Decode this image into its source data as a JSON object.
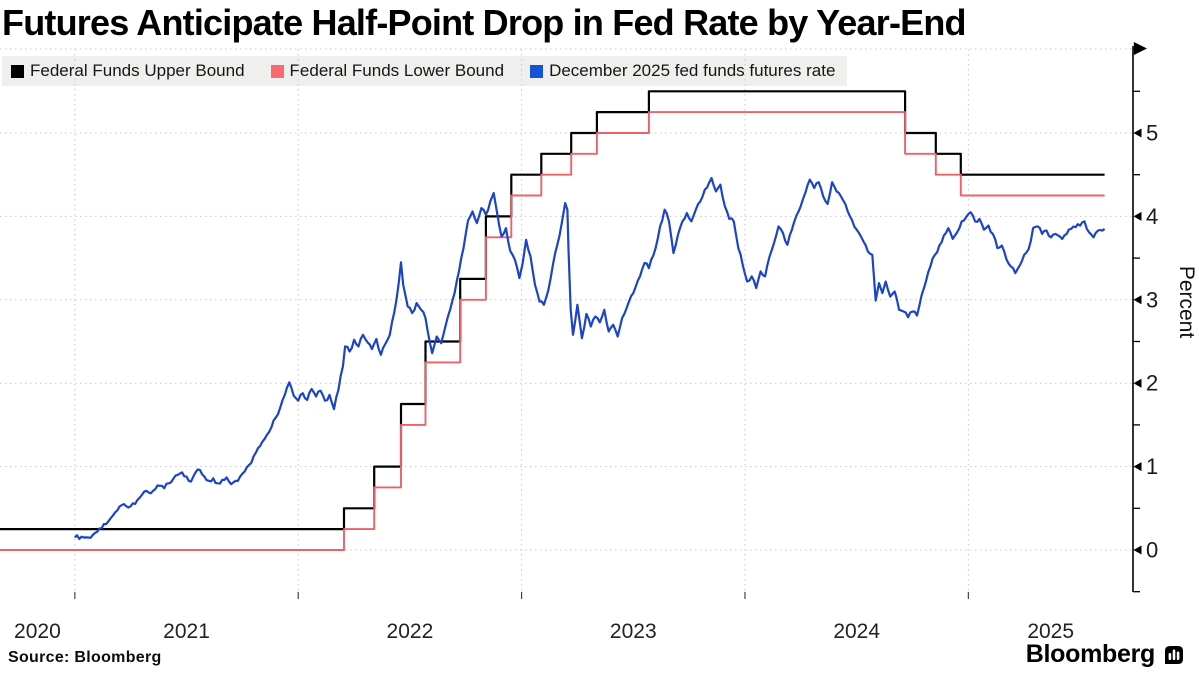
{
  "title": "Futures Anticipate Half-Point Drop in Fed Rate by Year-End",
  "source_note": "Source: Bloomberg",
  "brand": {
    "wordmark": "Bloomberg"
  },
  "legend": {
    "items": [
      {
        "label": "Federal Funds Upper Bound",
        "swatch_color": "#000000"
      },
      {
        "label": "Federal Funds Lower Bound",
        "swatch_color": "#fa696d"
      },
      {
        "label": "December 2025 fed funds futures rate",
        "swatch_color": "#1353d6"
      }
    ]
  },
  "chart_data": {
    "type": "line",
    "title": "Futures Anticipate Half-Point Drop in Fed Rate by Year-End",
    "xlabel": "",
    "ylabel": "Percent",
    "x_axis": {
      "domain": [
        2020.665,
        2025.737
      ],
      "gridline_years": [
        2021,
        2022,
        2023,
        2024,
        2025
      ],
      "labels": [
        "2020",
        "2021",
        "2022",
        "2023",
        "2024",
        "2025"
      ],
      "grid": true
    },
    "y_axis": {
      "range_shown": [
        -0.5,
        5.95
      ],
      "ticks": [
        0,
        1,
        2,
        3,
        4,
        5
      ],
      "minor_tick_step": 0.5,
      "side": "right",
      "grid": true
    },
    "colors": {
      "grid": "#c7c7c7",
      "axis": "#000000",
      "tick_text": "#1a1a1a"
    },
    "series": [
      {
        "name": "Federal Funds Upper Bound",
        "type": "step",
        "color": "#000000",
        "width": 2.2,
        "points": [
          [
            2020.665,
            0.25
          ],
          [
            2022.205,
            0.5
          ],
          [
            2022.34,
            1.0
          ],
          [
            2022.46,
            1.75
          ],
          [
            2022.57,
            2.5
          ],
          [
            2022.725,
            3.25
          ],
          [
            2022.84,
            4.0
          ],
          [
            2022.954,
            4.5
          ],
          [
            2023.088,
            4.75
          ],
          [
            2023.222,
            5.0
          ],
          [
            2023.337,
            5.25
          ],
          [
            2023.57,
            5.5
          ],
          [
            2024.717,
            5.0
          ],
          [
            2024.854,
            4.75
          ],
          [
            2024.966,
            4.5
          ],
          [
            2025.61,
            4.5
          ]
        ]
      },
      {
        "name": "Federal Funds Lower Bound",
        "type": "step",
        "color": "#ee6166",
        "width": 1.9,
        "points": [
          [
            2020.665,
            0.0
          ],
          [
            2022.205,
            0.25
          ],
          [
            2022.34,
            0.75
          ],
          [
            2022.46,
            1.5
          ],
          [
            2022.57,
            2.25
          ],
          [
            2022.725,
            3.0
          ],
          [
            2022.84,
            3.75
          ],
          [
            2022.954,
            4.25
          ],
          [
            2023.088,
            4.5
          ],
          [
            2023.222,
            4.75
          ],
          [
            2023.337,
            5.0
          ],
          [
            2023.57,
            5.25
          ],
          [
            2024.717,
            4.75
          ],
          [
            2024.854,
            4.5
          ],
          [
            2024.966,
            4.25
          ],
          [
            2025.61,
            4.25
          ]
        ]
      },
      {
        "name": "December 2025 fed funds futures rate",
        "type": "line",
        "color": "#1c44c9",
        "width": 2.2,
        "points": [
          [
            2021.0,
            0.15
          ],
          [
            2021.03,
            0.16
          ],
          [
            2021.06,
            0.15
          ],
          [
            2021.08,
            0.18
          ],
          [
            2021.1,
            0.22
          ],
          [
            2021.12,
            0.26
          ],
          [
            2021.14,
            0.31
          ],
          [
            2021.16,
            0.38
          ],
          [
            2021.18,
            0.45
          ],
          [
            2021.2,
            0.52
          ],
          [
            2021.22,
            0.55
          ],
          [
            2021.24,
            0.51
          ],
          [
            2021.26,
            0.56
          ],
          [
            2021.28,
            0.6
          ],
          [
            2021.3,
            0.66
          ],
          [
            2021.32,
            0.71
          ],
          [
            2021.34,
            0.68
          ],
          [
            2021.36,
            0.73
          ],
          [
            2021.38,
            0.77
          ],
          [
            2021.4,
            0.74
          ],
          [
            2021.42,
            0.8
          ],
          [
            2021.44,
            0.85
          ],
          [
            2021.46,
            0.9
          ],
          [
            2021.48,
            0.93
          ],
          [
            2021.5,
            0.88
          ],
          [
            2021.52,
            0.82
          ],
          [
            2021.54,
            0.93
          ],
          [
            2021.56,
            0.96
          ],
          [
            2021.58,
            0.88
          ],
          [
            2021.6,
            0.83
          ],
          [
            2021.62,
            0.86
          ],
          [
            2021.64,
            0.8
          ],
          [
            2021.66,
            0.84
          ],
          [
            2021.68,
            0.87
          ],
          [
            2021.7,
            0.79
          ],
          [
            2021.72,
            0.83
          ],
          [
            2021.74,
            0.88
          ],
          [
            2021.76,
            0.94
          ],
          [
            2021.78,
            1.02
          ],
          [
            2021.8,
            1.12
          ],
          [
            2021.82,
            1.22
          ],
          [
            2021.84,
            1.3
          ],
          [
            2021.86,
            1.38
          ],
          [
            2021.88,
            1.47
          ],
          [
            2021.9,
            1.59
          ],
          [
            2021.92,
            1.71
          ],
          [
            2021.94,
            1.86
          ],
          [
            2021.96,
            2.01
          ],
          [
            2021.97,
            1.94
          ],
          [
            2021.98,
            1.85
          ],
          [
            2022.0,
            1.79
          ],
          [
            2022.02,
            1.88
          ],
          [
            2022.04,
            1.8
          ],
          [
            2022.06,
            1.93
          ],
          [
            2022.08,
            1.84
          ],
          [
            2022.1,
            1.91
          ],
          [
            2022.12,
            1.79
          ],
          [
            2022.14,
            1.86
          ],
          [
            2022.16,
            1.69
          ],
          [
            2022.18,
            1.92
          ],
          [
            2022.2,
            2.2
          ],
          [
            2022.21,
            2.44
          ],
          [
            2022.23,
            2.38
          ],
          [
            2022.25,
            2.52
          ],
          [
            2022.27,
            2.44
          ],
          [
            2022.29,
            2.58
          ],
          [
            2022.31,
            2.49
          ],
          [
            2022.33,
            2.41
          ],
          [
            2022.35,
            2.53
          ],
          [
            2022.37,
            2.34
          ],
          [
            2022.39,
            2.47
          ],
          [
            2022.41,
            2.58
          ],
          [
            2022.43,
            2.85
          ],
          [
            2022.45,
            3.2
          ],
          [
            2022.46,
            3.45
          ],
          [
            2022.47,
            3.18
          ],
          [
            2022.49,
            2.92
          ],
          [
            2022.51,
            2.84
          ],
          [
            2022.53,
            2.96
          ],
          [
            2022.55,
            2.88
          ],
          [
            2022.57,
            2.78
          ],
          [
            2022.59,
            2.48
          ],
          [
            2022.6,
            2.36
          ],
          [
            2022.62,
            2.56
          ],
          [
            2022.64,
            2.48
          ],
          [
            2022.66,
            2.69
          ],
          [
            2022.68,
            2.88
          ],
          [
            2022.7,
            3.08
          ],
          [
            2022.72,
            3.35
          ],
          [
            2022.74,
            3.62
          ],
          [
            2022.76,
            3.95
          ],
          [
            2022.78,
            4.06
          ],
          [
            2022.8,
            3.92
          ],
          [
            2022.82,
            4.1
          ],
          [
            2022.84,
            4.02
          ],
          [
            2022.86,
            4.18
          ],
          [
            2022.875,
            4.28
          ],
          [
            2022.89,
            4.05
          ],
          [
            2022.91,
            3.76
          ],
          [
            2022.93,
            3.86
          ],
          [
            2022.95,
            3.58
          ],
          [
            2022.97,
            3.48
          ],
          [
            2022.99,
            3.26
          ],
          [
            2023.005,
            3.44
          ],
          [
            2023.02,
            3.72
          ],
          [
            2023.04,
            3.52
          ],
          [
            2023.06,
            3.18
          ],
          [
            2023.08,
            2.98
          ],
          [
            2023.1,
            2.94
          ],
          [
            2023.12,
            3.12
          ],
          [
            2023.14,
            3.42
          ],
          [
            2023.16,
            3.66
          ],
          [
            2023.18,
            3.92
          ],
          [
            2023.195,
            4.16
          ],
          [
            2023.205,
            4.08
          ],
          [
            2023.21,
            3.6
          ],
          [
            2023.22,
            2.88
          ],
          [
            2023.23,
            2.58
          ],
          [
            2023.25,
            2.94
          ],
          [
            2023.27,
            2.54
          ],
          [
            2023.29,
            2.83
          ],
          [
            2023.31,
            2.68
          ],
          [
            2023.33,
            2.8
          ],
          [
            2023.35,
            2.73
          ],
          [
            2023.37,
            2.88
          ],
          [
            2023.39,
            2.62
          ],
          [
            2023.41,
            2.7
          ],
          [
            2023.43,
            2.56
          ],
          [
            2023.45,
            2.78
          ],
          [
            2023.47,
            2.9
          ],
          [
            2023.5,
            3.08
          ],
          [
            2023.53,
            3.28
          ],
          [
            2023.55,
            3.44
          ],
          [
            2023.57,
            3.38
          ],
          [
            2023.6,
            3.62
          ],
          [
            2023.62,
            3.88
          ],
          [
            2023.64,
            4.08
          ],
          [
            2023.66,
            3.94
          ],
          [
            2023.68,
            3.56
          ],
          [
            2023.7,
            3.78
          ],
          [
            2023.72,
            3.94
          ],
          [
            2023.74,
            4.04
          ],
          [
            2023.76,
            3.94
          ],
          [
            2023.78,
            4.08
          ],
          [
            2023.8,
            4.18
          ],
          [
            2023.82,
            4.32
          ],
          [
            2023.85,
            4.46
          ],
          [
            2023.87,
            4.3
          ],
          [
            2023.89,
            4.38
          ],
          [
            2023.91,
            4.12
          ],
          [
            2023.93,
            3.97
          ],
          [
            2023.95,
            3.94
          ],
          [
            2023.97,
            3.62
          ],
          [
            2023.99,
            3.42
          ],
          [
            2024.01,
            3.22
          ],
          [
            2024.03,
            3.28
          ],
          [
            2024.05,
            3.14
          ],
          [
            2024.07,
            3.34
          ],
          [
            2024.09,
            3.28
          ],
          [
            2024.11,
            3.52
          ],
          [
            2024.13,
            3.68
          ],
          [
            2024.15,
            3.88
          ],
          [
            2024.17,
            3.8
          ],
          [
            2024.19,
            3.66
          ],
          [
            2024.21,
            3.84
          ],
          [
            2024.24,
            4.06
          ],
          [
            2024.27,
            4.28
          ],
          [
            2024.29,
            4.44
          ],
          [
            2024.31,
            4.34
          ],
          [
            2024.33,
            4.41
          ],
          [
            2024.35,
            4.24
          ],
          [
            2024.37,
            4.15
          ],
          [
            2024.39,
            4.41
          ],
          [
            2024.41,
            4.3
          ],
          [
            2024.44,
            4.19
          ],
          [
            2024.47,
            4.0
          ],
          [
            2024.5,
            3.84
          ],
          [
            2024.53,
            3.7
          ],
          [
            2024.55,
            3.58
          ],
          [
            2024.57,
            3.54
          ],
          [
            2024.585,
            2.99
          ],
          [
            2024.6,
            3.2
          ],
          [
            2024.615,
            3.08
          ],
          [
            2024.63,
            3.22
          ],
          [
            2024.65,
            3.04
          ],
          [
            2024.67,
            3.1
          ],
          [
            2024.69,
            2.88
          ],
          [
            2024.71,
            2.86
          ],
          [
            2024.73,
            2.79
          ],
          [
            2024.75,
            2.86
          ],
          [
            2024.77,
            2.81
          ],
          [
            2024.79,
            3.05
          ],
          [
            2024.81,
            3.22
          ],
          [
            2024.83,
            3.4
          ],
          [
            2024.85,
            3.54
          ],
          [
            2024.87,
            3.65
          ],
          [
            2024.89,
            3.77
          ],
          [
            2024.91,
            3.86
          ],
          [
            2024.93,
            3.73
          ],
          [
            2024.95,
            3.81
          ],
          [
            2024.97,
            3.94
          ],
          [
            2024.99,
            3.99
          ],
          [
            2025.01,
            4.05
          ],
          [
            2025.03,
            3.94
          ],
          [
            2025.05,
            3.97
          ],
          [
            2025.07,
            3.84
          ],
          [
            2025.09,
            3.89
          ],
          [
            2025.11,
            3.79
          ],
          [
            2025.13,
            3.62
          ],
          [
            2025.15,
            3.65
          ],
          [
            2025.17,
            3.49
          ],
          [
            2025.19,
            3.4
          ],
          [
            2025.21,
            3.32
          ],
          [
            2025.23,
            3.41
          ],
          [
            2025.25,
            3.54
          ],
          [
            2025.27,
            3.61
          ],
          [
            2025.29,
            3.86
          ],
          [
            2025.31,
            3.88
          ],
          [
            2025.33,
            3.79
          ],
          [
            2025.35,
            3.83
          ],
          [
            2025.37,
            3.75
          ],
          [
            2025.39,
            3.79
          ],
          [
            2025.42,
            3.73
          ],
          [
            2025.44,
            3.79
          ],
          [
            2025.46,
            3.85
          ],
          [
            2025.48,
            3.87
          ],
          [
            2025.5,
            3.89
          ],
          [
            2025.52,
            3.94
          ],
          [
            2025.54,
            3.81
          ],
          [
            2025.56,
            3.75
          ],
          [
            2025.58,
            3.83
          ],
          [
            2025.61,
            3.85
          ]
        ]
      }
    ]
  }
}
